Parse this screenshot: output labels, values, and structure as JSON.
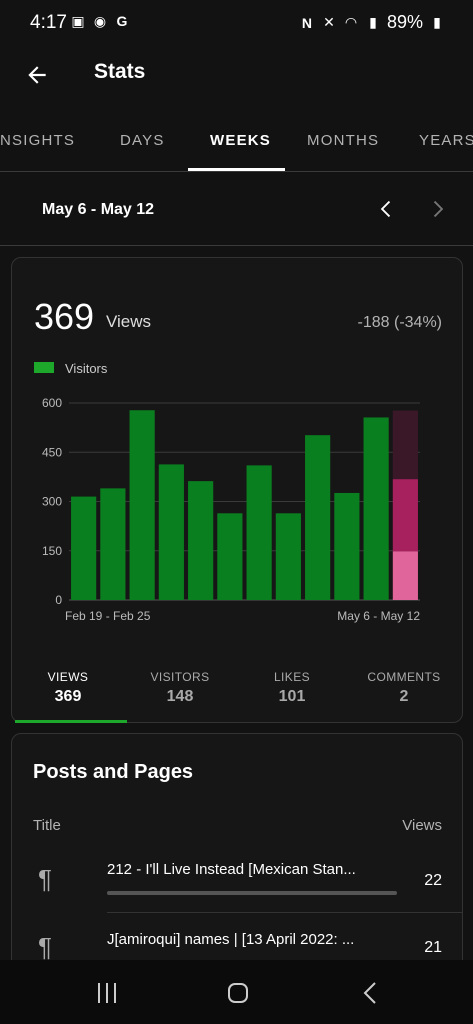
{
  "status": {
    "time": "4:17",
    "battery": "89%"
  },
  "app_bar": {
    "title": "Stats"
  },
  "tabs": [
    "NSIGHTS",
    "DAYS",
    "WEEKS",
    "MONTHS",
    "YEARS"
  ],
  "date_range": "May 6 - May 12",
  "summary": {
    "views": "369",
    "views_label": "Views",
    "change": "-188 (-34%)",
    "legend": "Visitors"
  },
  "chart_data": {
    "type": "bar",
    "categories": [
      "Feb 19 - Feb 25",
      "",
      "",
      "",
      "",
      "",
      "",
      "",
      "",
      "",
      "",
      "May 6 - May 12"
    ],
    "series": [
      {
        "name": "Visitors",
        "values": [
          315,
          340,
          578,
          413,
          362,
          264,
          410,
          264,
          502,
          326,
          556,
          577
        ]
      }
    ],
    "last_bar_segments": [
      148,
      368,
      577
    ],
    "ylim": [
      0,
      600
    ],
    "yticks": [
      "0",
      "150",
      "300",
      "450",
      "600"
    ],
    "xlabels": {
      "first": "Feb 19 - Feb 25",
      "last": "May 6 - May 12"
    }
  },
  "stats": [
    {
      "label": "VIEWS",
      "value": "369"
    },
    {
      "label": "VISITORS",
      "value": "148"
    },
    {
      "label": "LIKES",
      "value": "101"
    },
    {
      "label": "COMMENTS",
      "value": "2"
    }
  ],
  "posts": {
    "title": "Posts and Pages",
    "col_title": "Title",
    "col_views": "Views",
    "rows": [
      {
        "title": "212 - I'll Live Instead [Mexican Stan...",
        "views": "22",
        "bar": 1.0
      },
      {
        "title": "J[amiroqui] names | [13 April 2022: ...",
        "views": "21",
        "bar": 0.95
      }
    ]
  },
  "colors": {
    "accent": "#1ea82b",
    "bar": "#0a7f1f",
    "seg_low": "#e0659a",
    "seg_mid": "#a8215f",
    "seg_top": "#3a1828"
  }
}
